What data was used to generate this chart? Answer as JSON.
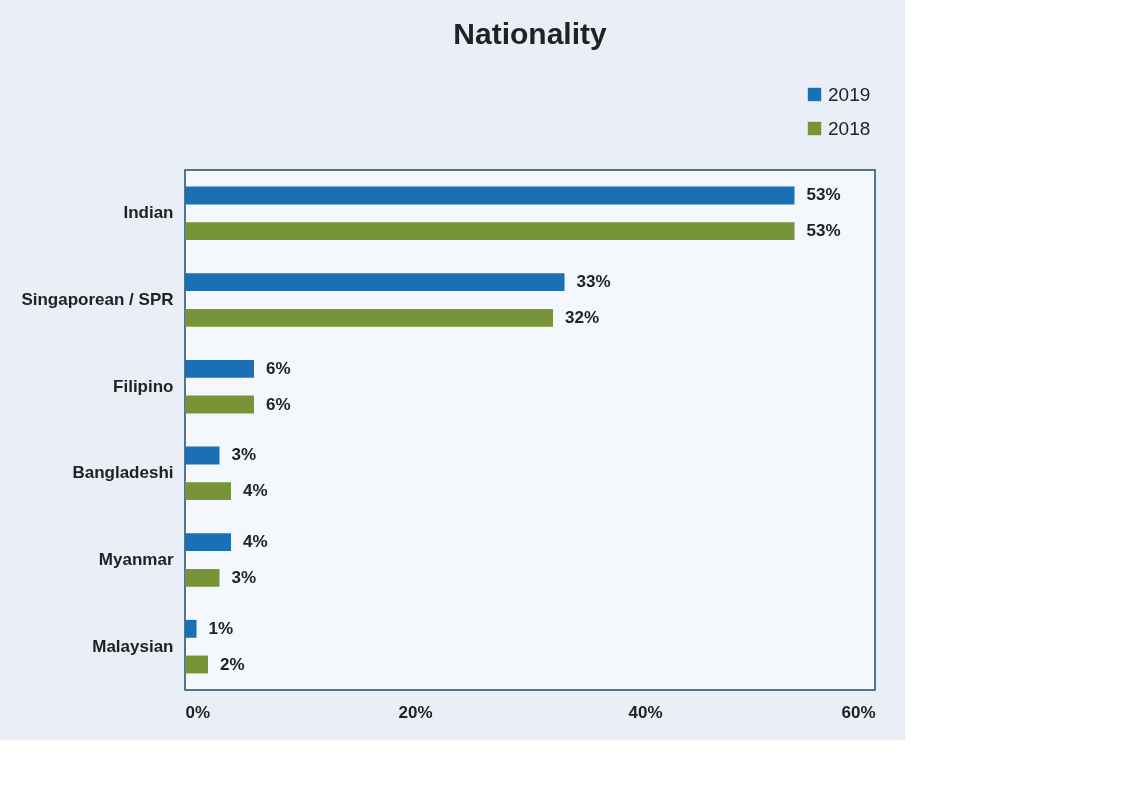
{
  "chart_data": {
    "type": "bar",
    "orientation": "horizontal",
    "title": "Nationality",
    "categories": [
      "Indian",
      "Singaporean / SPR",
      "Filipino",
      "Bangladeshi",
      "Myanmar",
      "Malaysian"
    ],
    "series": [
      {
        "name": "2019",
        "color": "#1a6fb5",
        "values": [
          53,
          33,
          6,
          3,
          4,
          1
        ],
        "value_labels": [
          "53%",
          "33%",
          "6%",
          "3%",
          "4%",
          "1%"
        ]
      },
      {
        "name": "2018",
        "color": "#789439",
        "values": [
          53,
          32,
          6,
          4,
          3,
          2
        ],
        "value_labels": [
          "53%",
          "32%",
          "6%",
          "4%",
          "3%",
          "2%"
        ]
      }
    ],
    "xlim": [
      0,
      60
    ],
    "xticks": [
      {
        "value": 0,
        "label": "0%"
      },
      {
        "value": 20,
        "label": "20%"
      },
      {
        "value": 40,
        "label": "40%"
      },
      {
        "value": 60,
        "label": "60%"
      }
    ],
    "grid": false,
    "legend": "top right"
  }
}
